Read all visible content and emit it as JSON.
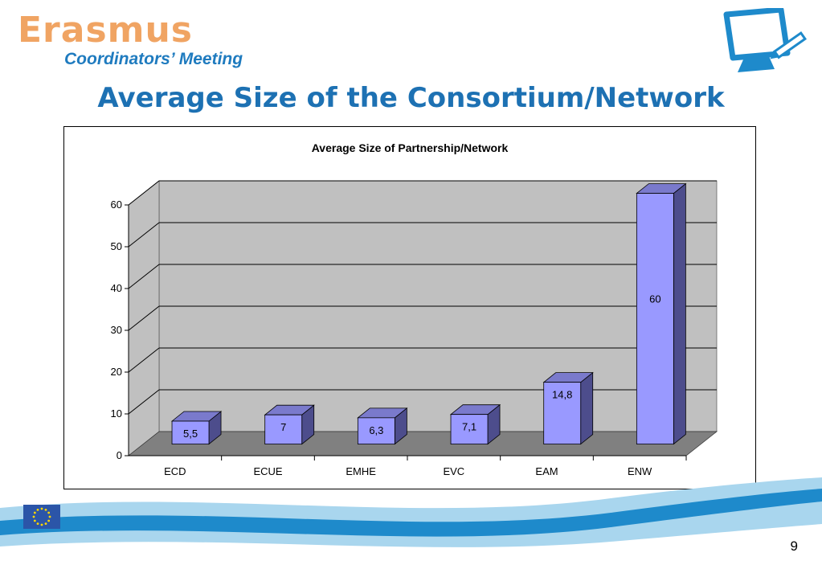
{
  "colors": {
    "logo_orange": "#f0a463",
    "logo_blue": "#1f7bbf",
    "title_blue": "#1d71b3",
    "wall": "#c0c0c0",
    "floor": "#808080",
    "bar_front": "#9999ff",
    "bar_top": "#7a7acc",
    "bar_side": "#4d4d8c",
    "wave_light": "#a9d6ee",
    "wave_dark": "#1e8acb",
    "flag_blue": "#2b55a8",
    "flag_stars": "#ffd700"
  },
  "header": {
    "logo_text": "Erasmus",
    "logo_subtitle": "Coordinators’ Meeting",
    "monitor_icon": "monitor-with-pen-icon"
  },
  "slide": {
    "title": "Average Size of the Consortium/Network",
    "page_number": "9"
  },
  "chart_data": {
    "type": "bar",
    "title": "Average Size of Partnership/Network",
    "categories": [
      "ECD",
      "ECUE",
      "EMHE",
      "EVC",
      "EAM",
      "ENW"
    ],
    "values": [
      5.5,
      7,
      6.3,
      7.1,
      14.8,
      60
    ],
    "data_labels": [
      "5,5",
      "7",
      "6,3",
      "7,1",
      "14,8",
      "60"
    ],
    "ylim": [
      0,
      60
    ],
    "yticks": [
      0,
      10,
      20,
      30,
      40,
      50,
      60
    ],
    "xlabel": "",
    "ylabel": "",
    "grid": true,
    "style": "3d"
  },
  "footer": {
    "flag_icon": "eu-flag-icon"
  }
}
